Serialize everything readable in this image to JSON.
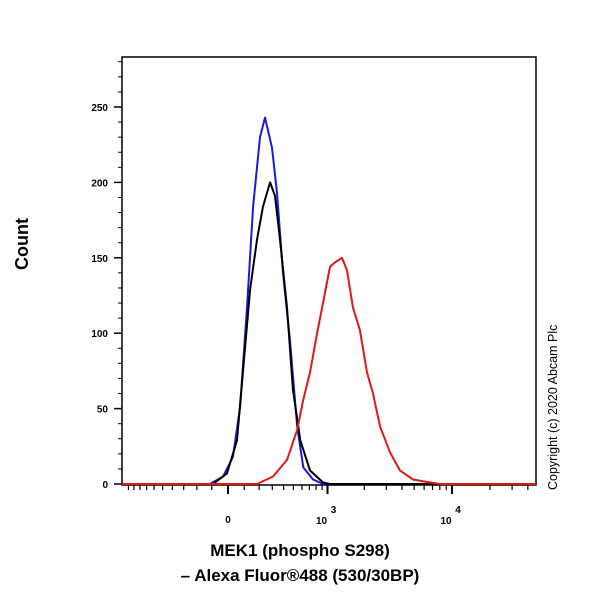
{
  "chart_data": {
    "type": "line",
    "title": "",
    "xlabel_line1": "MEK1 (phospho S298)",
    "xlabel_line2": "– Alexa Fluor®488 (530/30BP)",
    "ylabel": "Count",
    "x_scale": "biexponential",
    "xlim": [
      -1135,
      46300
    ],
    "ylim": [
      0,
      284
    ],
    "grid": false,
    "legend": "none",
    "x_tick_labels": [
      {
        "value": 0,
        "label": "0"
      },
      {
        "value": 1000,
        "base": "10",
        "exp": "3"
      },
      {
        "value": 10000,
        "base": "10",
        "exp": "4"
      }
    ],
    "y_ticks": [
      0,
      50,
      100,
      150,
      200,
      250
    ],
    "series": [
      {
        "color": "#1a1adf",
        "points": [
          [
            -112,
            0
          ],
          [
            -30,
            5
          ],
          [
            30,
            18
          ],
          [
            74,
            51
          ],
          [
            118,
            117
          ],
          [
            158,
            184
          ],
          [
            206,
            230
          ],
          [
            243,
            243
          ],
          [
            298,
            223
          ],
          [
            340,
            193
          ],
          [
            394,
            140
          ],
          [
            464,
            95
          ],
          [
            543,
            38
          ],
          [
            617,
            11
          ],
          [
            753,
            3
          ],
          [
            916,
            0
          ],
          [
            46300,
            0
          ]
        ]
      },
      {
        "color": "#000000",
        "points": [
          [
            -1135,
            0
          ],
          [
            -92,
            0
          ],
          [
            -6,
            7
          ],
          [
            55,
            29
          ],
          [
            92,
            74
          ],
          [
            138,
            129
          ],
          [
            185,
            162
          ],
          [
            228,
            184
          ],
          [
            282,
            200
          ],
          [
            323,
            191
          ],
          [
            366,
            162
          ],
          [
            433,
            117
          ],
          [
            496,
            62
          ],
          [
            580,
            29
          ],
          [
            709,
            9
          ],
          [
            916,
            1
          ],
          [
            1049,
            0
          ],
          [
            46300,
            0
          ]
        ]
      },
      {
        "color": "#e01818",
        "points": [
          [
            -1135,
            0
          ],
          [
            185,
            0
          ],
          [
            307,
            5
          ],
          [
            433,
            16
          ],
          [
            543,
            36
          ],
          [
            617,
            56
          ],
          [
            709,
            74
          ],
          [
            816,
            100
          ],
          [
            916,
            120
          ],
          [
            1049,
            144
          ],
          [
            1156,
            147
          ],
          [
            1315,
            150
          ],
          [
            1445,
            142
          ],
          [
            1618,
            117
          ],
          [
            1841,
            102
          ],
          [
            2101,
            74
          ],
          [
            2348,
            60
          ],
          [
            2674,
            38
          ],
          [
            3210,
            21
          ],
          [
            3853,
            9
          ],
          [
            4895,
            3
          ],
          [
            6693,
            1
          ],
          [
            8025,
            0
          ],
          [
            46300,
            0
          ]
        ]
      }
    ]
  },
  "copyright": "Copyright (c) 2020 Abcam Plc"
}
